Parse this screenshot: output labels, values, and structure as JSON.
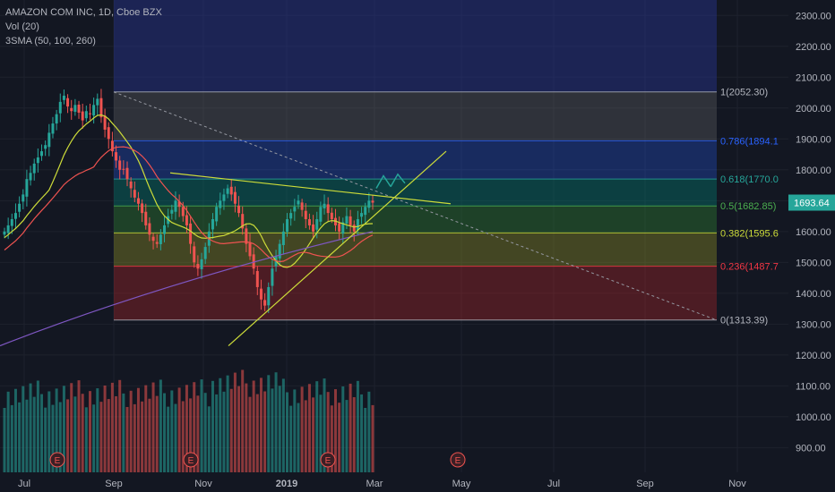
{
  "legend": {
    "symbol": "AMAZON COM INC, 1D, Cboe BZX",
    "volume": "Vol (20)",
    "sma": "3SMA (50, 100, 260)"
  },
  "chart_data": {
    "type": "candlestick",
    "symbol": "AMZN",
    "interval": "1D",
    "y_axis": {
      "ticks": [
        900,
        1000,
        1100,
        1200,
        1300,
        1400,
        1500,
        1600,
        1700,
        1800,
        1900,
        2000,
        2100,
        2200,
        2300
      ],
      "tick_labels": [
        "900.00",
        "1000.00",
        "1100.00",
        "1200.00",
        "1300.00",
        "1400.00",
        "1500.00",
        "1600.00",
        "1700.00",
        "1800.00",
        "1900.00",
        "2000.00",
        "2100.00",
        "2200.00",
        "2300.00"
      ],
      "range": [
        820,
        2350
      ]
    },
    "x_axis": {
      "labels": [
        "Jul",
        "Sep",
        "Nov",
        "2019",
        "Mar",
        "May",
        "Jul",
        "Sep",
        "Nov"
      ],
      "bold_label": "2019"
    },
    "current_price": {
      "label": "1693.64",
      "value": 1693.64,
      "color": "#26a69a"
    },
    "fibonacci": [
      {
        "level": 1,
        "price": 2052.3,
        "label": "1(2052.30)",
        "color": "#b2b5be"
      },
      {
        "level": 0.786,
        "price": 1894.1,
        "label": "0.786(1894.1",
        "color": "#2962ff"
      },
      {
        "level": 0.618,
        "price": 1770.0,
        "label": "0.618(1770.0",
        "color": "#26a69a"
      },
      {
        "level": 0.5,
        "price": 1682.85,
        "label": "0.5(1682.85)",
        "color": "#4caf50"
      },
      {
        "level": 0.382,
        "price": 1595.6,
        "label": "0.382(1595.6",
        "color": "#cddc39"
      },
      {
        "level": 0.236,
        "price": 1487.7,
        "label": "0.236(1487.7",
        "color": "#f23645"
      },
      {
        "level": 0,
        "price": 1313.39,
        "label": "0(1313.39)",
        "color": "#b2b5be"
      }
    ],
    "earnings_markers": [
      "E",
      "E",
      "E",
      "E"
    ],
    "colors": {
      "up": "#26a69a",
      "down": "#ef5350",
      "sma50": "#cddc39",
      "sma100": "#ef5350",
      "sma260": "#7e57c2",
      "fib_top": "#283593"
    },
    "candles_close": [
      1600,
      1620,
      1640,
      1660,
      1690,
      1720,
      1770,
      1790,
      1820,
      1840,
      1860,
      1880,
      1920,
      1950,
      1980,
      2020,
      2040,
      2005,
      1990,
      2010,
      1985,
      1960,
      1990,
      1980,
      2010,
      2030,
      1970,
      1930,
      1900,
      1860,
      1830,
      1800,
      1800,
      1770,
      1740,
      1710,
      1690,
      1660,
      1620,
      1590,
      1570,
      1560,
      1590,
      1620,
      1650,
      1670,
      1700,
      1680,
      1650,
      1620,
      1560,
      1500,
      1480,
      1510,
      1550,
      1600,
      1640,
      1680,
      1700,
      1720,
      1740,
      1720,
      1690,
      1660,
      1610,
      1560,
      1520,
      1480,
      1420,
      1380,
      1360,
      1420,
      1480,
      1520,
      1560,
      1600,
      1640,
      1660,
      1680,
      1700,
      1670,
      1640,
      1620,
      1600,
      1640,
      1680,
      1690,
      1660,
      1640,
      1620,
      1600,
      1630,
      1650,
      1620,
      1600,
      1640,
      1660,
      1680,
      1700,
      1693.64
    ],
    "volume_note": "volume histogram of 100 bars"
  }
}
